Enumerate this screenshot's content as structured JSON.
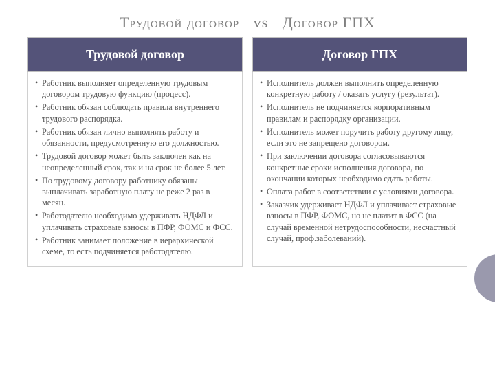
{
  "colors": {
    "header_bg": "#545379",
    "header_text": "#ffffff",
    "body_text": "#555555",
    "title_text": "#808080",
    "border": "#d0d0d0",
    "circle": "#9a99ad",
    "page_bg": "#ffffff"
  },
  "title": {
    "left": "Трудовой договор",
    "mid": "vs",
    "right": "Договор ГПХ",
    "fontsize": 22
  },
  "columns": [
    {
      "header": "Трудовой договор",
      "header_fontsize": 18,
      "body_fontsize": 12.3,
      "items": [
        "Работник выполняет определенную трудовым договором трудовую функцию (процесс).",
        "Работник обязан соблюдать правила внутреннего трудового распорядка.",
        "Работник обязан лично выполнять работу и обязанности, предусмотренную его должностью.",
        "Трудовой договор может быть заключен как на неопределенный срок, так и на срок не более 5 лет.",
        "По трудовому договору работнику обязаны выплачивать заработную плату не реже 2 раз в месяц.",
        "Работодателю необходимо удерживать НДФЛ и уплачивать страховые взносы в ПФР, ФОМС и ФСС.",
        "Работник занимает положение в иерархической схеме, то есть подчиняется работодателю."
      ]
    },
    {
      "header": "Договор ГПХ",
      "header_fontsize": 18,
      "body_fontsize": 12.3,
      "items": [
        "Исполнитель должен выполнить определенную конкретную работу / оказать услугу (результат).",
        "Исполнитель не подчиняется корпоративным правилам и распорядку организации.",
        "Исполнитель может поручить работу другому лицу, если это не запрещено договором.",
        " При заключении договора согласовываются конкретные сроки исполнения договора, по окончании которых необходимо сдать работы.",
        "Оплата работ в соответствии с условиями договора.",
        "Заказчик удерживает НДФЛ и уплачивает страховые взносы в ПФР, ФОМС, но не платит в ФСС (на случай временной нетрудоспособности, несчастный случай, проф.заболеваний)."
      ]
    }
  ]
}
